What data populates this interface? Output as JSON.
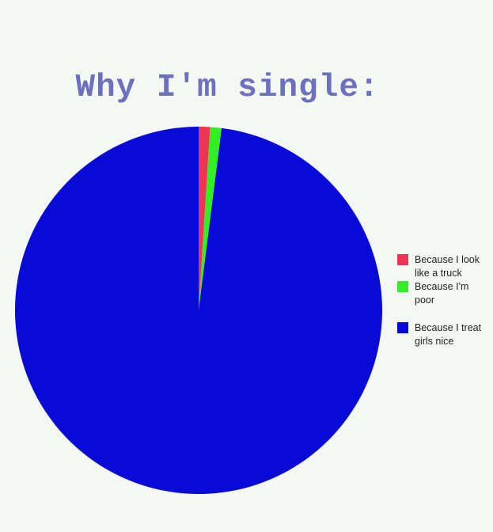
{
  "chart_data": {
    "type": "pie",
    "title": "Why I'm single:",
    "legend_position": "right",
    "slices": [
      {
        "label": "Because I look like a truck",
        "value": 1,
        "color": "#ee3355"
      },
      {
        "label": "Because I'm poor",
        "value": 1,
        "color": "#33ee22"
      },
      {
        "label": "Because I treat girls nice",
        "value": 98,
        "color": "#0a0ad8"
      }
    ]
  }
}
